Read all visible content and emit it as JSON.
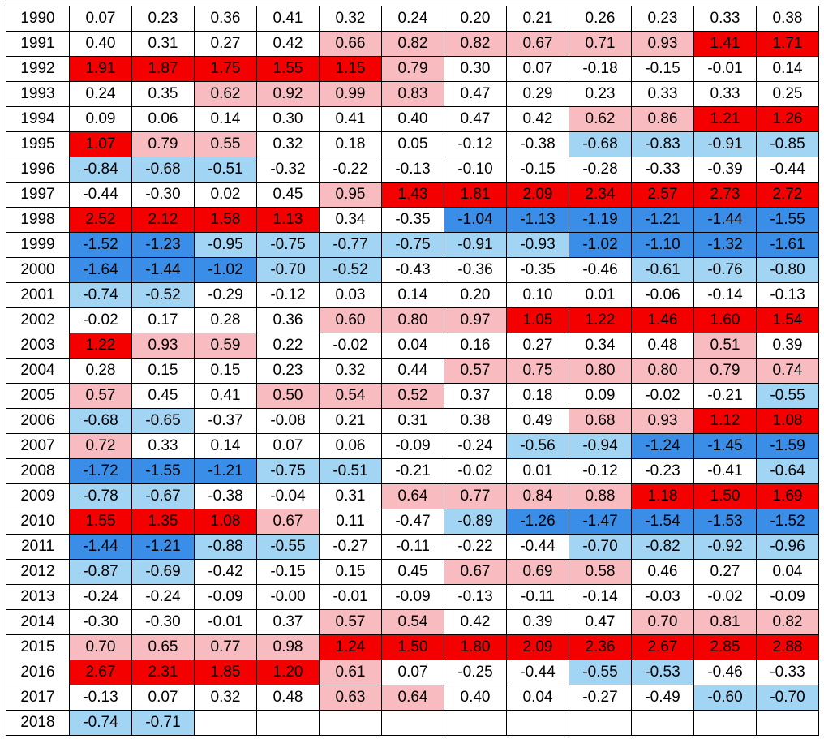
{
  "chart_data": {
    "type": "table",
    "rows": [
      {
        "year": "1990",
        "values": [
          "0.07",
          "0.23",
          "0.36",
          "0.41",
          "0.32",
          "0.24",
          "0.20",
          "0.21",
          "0.26",
          "0.23",
          "0.33",
          "0.38"
        ]
      },
      {
        "year": "1991",
        "values": [
          "0.40",
          "0.31",
          "0.27",
          "0.42",
          "0.66",
          "0.82",
          "0.82",
          "0.67",
          "0.71",
          "0.93",
          "1.41",
          "1.71"
        ]
      },
      {
        "year": "1992",
        "values": [
          "1.91",
          "1.87",
          "1.75",
          "1.55",
          "1.15",
          "0.79",
          "0.30",
          "0.07",
          "-0.18",
          "-0.15",
          "-0.01",
          "0.14"
        ]
      },
      {
        "year": "1993",
        "values": [
          "0.24",
          "0.35",
          "0.62",
          "0.92",
          "0.99",
          "0.83",
          "0.47",
          "0.29",
          "0.23",
          "0.33",
          "0.33",
          "0.25"
        ]
      },
      {
        "year": "1994",
        "values": [
          "0.09",
          "0.06",
          "0.14",
          "0.30",
          "0.41",
          "0.40",
          "0.47",
          "0.42",
          "0.62",
          "0.86",
          "1.21",
          "1.26"
        ]
      },
      {
        "year": "1995",
        "values": [
          "1.07",
          "0.79",
          "0.55",
          "0.32",
          "0.18",
          "0.05",
          "-0.12",
          "-0.38",
          "-0.68",
          "-0.83",
          "-0.91",
          "-0.85"
        ]
      },
      {
        "year": "1996",
        "values": [
          "-0.84",
          "-0.68",
          "-0.51",
          "-0.32",
          "-0.22",
          "-0.13",
          "-0.10",
          "-0.15",
          "-0.28",
          "-0.33",
          "-0.39",
          "-0.44"
        ]
      },
      {
        "year": "1997",
        "values": [
          "-0.44",
          "-0.30",
          "0.02",
          "0.45",
          "0.95",
          "1.43",
          "1.81",
          "2.09",
          "2.34",
          "2.57",
          "2.73",
          "2.72"
        ]
      },
      {
        "year": "1998",
        "values": [
          "2.52",
          "2.12",
          "1.58",
          "1.13",
          "0.34",
          "-0.35",
          "-1.04",
          "-1.13",
          "-1.19",
          "-1.21",
          "-1.44",
          "-1.55"
        ]
      },
      {
        "year": "1999",
        "values": [
          "-1.52",
          "-1.23",
          "-0.95",
          "-0.75",
          "-0.77",
          "-0.75",
          "-0.91",
          "-0.93",
          "-1.02",
          "-1.10",
          "-1.32",
          "-1.61"
        ]
      },
      {
        "year": "2000",
        "values": [
          "-1.64",
          "-1.44",
          "-1.02",
          "-0.70",
          "-0.52",
          "-0.43",
          "-0.36",
          "-0.35",
          "-0.46",
          "-0.61",
          "-0.76",
          "-0.80"
        ]
      },
      {
        "year": "2001",
        "values": [
          "-0.74",
          "-0.52",
          "-0.29",
          "-0.12",
          "0.03",
          "0.14",
          "0.20",
          "0.10",
          "0.01",
          "-0.06",
          "-0.14",
          "-0.13"
        ]
      },
      {
        "year": "2002",
        "values": [
          "-0.02",
          "0.17",
          "0.28",
          "0.36",
          "0.60",
          "0.80",
          "0.97",
          "1.05",
          "1.22",
          "1.46",
          "1.60",
          "1.54"
        ]
      },
      {
        "year": "2003",
        "values": [
          "1.22",
          "0.93",
          "0.59",
          "0.22",
          "-0.02",
          "0.04",
          "0.16",
          "0.27",
          "0.34",
          "0.48",
          "0.51",
          "0.39"
        ]
      },
      {
        "year": "2004",
        "values": [
          "0.28",
          "0.15",
          "0.15",
          "0.23",
          "0.32",
          "0.44",
          "0.57",
          "0.75",
          "0.80",
          "0.80",
          "0.79",
          "0.74"
        ]
      },
      {
        "year": "2005",
        "values": [
          "0.57",
          "0.45",
          "0.41",
          "0.50",
          "0.54",
          "0.52",
          "0.37",
          "0.18",
          "0.09",
          "-0.02",
          "-0.21",
          "-0.55"
        ]
      },
      {
        "year": "2006",
        "values": [
          "-0.68",
          "-0.65",
          "-0.37",
          "-0.08",
          "0.21",
          "0.31",
          "0.38",
          "0.49",
          "0.68",
          "0.93",
          "1.12",
          "1.08"
        ]
      },
      {
        "year": "2007",
        "values": [
          "0.72",
          "0.33",
          "0.14",
          "0.07",
          "0.06",
          "-0.09",
          "-0.24",
          "-0.56",
          "-0.94",
          "-1.24",
          "-1.45",
          "-1.59"
        ]
      },
      {
        "year": "2008",
        "values": [
          "-1.72",
          "-1.55",
          "-1.21",
          "-0.75",
          "-0.51",
          "-0.21",
          "-0.02",
          "0.01",
          "-0.12",
          "-0.23",
          "-0.41",
          "-0.64"
        ]
      },
      {
        "year": "2009",
        "values": [
          "-0.78",
          "-0.67",
          "-0.38",
          "-0.04",
          "0.31",
          "0.64",
          "0.77",
          "0.84",
          "0.88",
          "1.18",
          "1.50",
          "1.69"
        ]
      },
      {
        "year": "2010",
        "values": [
          "1.55",
          "1.35",
          "1.08",
          "0.67",
          "0.11",
          "-0.47",
          "-0.89",
          "-1.26",
          "-1.47",
          "-1.54",
          "-1.53",
          "-1.52"
        ]
      },
      {
        "year": "2011",
        "values": [
          "-1.44",
          "-1.21",
          "-0.88",
          "-0.55",
          "-0.27",
          "-0.11",
          "-0.22",
          "-0.44",
          "-0.70",
          "-0.82",
          "-0.92",
          "-0.96"
        ]
      },
      {
        "year": "2012",
        "values": [
          "-0.87",
          "-0.69",
          "-0.42",
          "-0.15",
          "0.15",
          "0.45",
          "0.67",
          "0.69",
          "0.58",
          "0.46",
          "0.27",
          "0.04"
        ]
      },
      {
        "year": "2013",
        "values": [
          "-0.24",
          "-0.24",
          "-0.09",
          "-0.00",
          "-0.01",
          "-0.09",
          "-0.13",
          "-0.11",
          "-0.14",
          "-0.03",
          "-0.02",
          "-0.09"
        ]
      },
      {
        "year": "2014",
        "values": [
          "-0.30",
          "-0.30",
          "-0.01",
          "0.37",
          "0.57",
          "0.54",
          "0.42",
          "0.39",
          "0.47",
          "0.70",
          "0.81",
          "0.82"
        ]
      },
      {
        "year": "2015",
        "values": [
          "0.70",
          "0.65",
          "0.77",
          "0.98",
          "1.24",
          "1.50",
          "1.80",
          "2.09",
          "2.36",
          "2.67",
          "2.85",
          "2.88"
        ]
      },
      {
        "year": "2016",
        "values": [
          "2.67",
          "2.31",
          "1.85",
          "1.20",
          "0.61",
          "0.07",
          "-0.25",
          "-0.44",
          "-0.55",
          "-0.53",
          "-0.46",
          "-0.33"
        ]
      },
      {
        "year": "2017",
        "values": [
          "-0.13",
          "0.07",
          "0.32",
          "0.48",
          "0.63",
          "0.64",
          "0.40",
          "0.04",
          "-0.27",
          "-0.49",
          "-0.60",
          "-0.70"
        ]
      },
      {
        "year": "2018",
        "values": [
          "-0.74",
          "-0.71",
          "",
          "",
          "",
          "",
          "",
          "",
          "",
          "",
          "",
          ""
        ]
      }
    ]
  },
  "colors": {
    "strong_positive": "#f40000",
    "weak_positive": "#f8bcc0",
    "strong_negative": "#3a8ee8",
    "weak_negative": "#a2d4f4",
    "neutral": "#ffffff"
  },
  "color_thresholds": {
    "strong": 1.0,
    "weak": 0.5
  }
}
